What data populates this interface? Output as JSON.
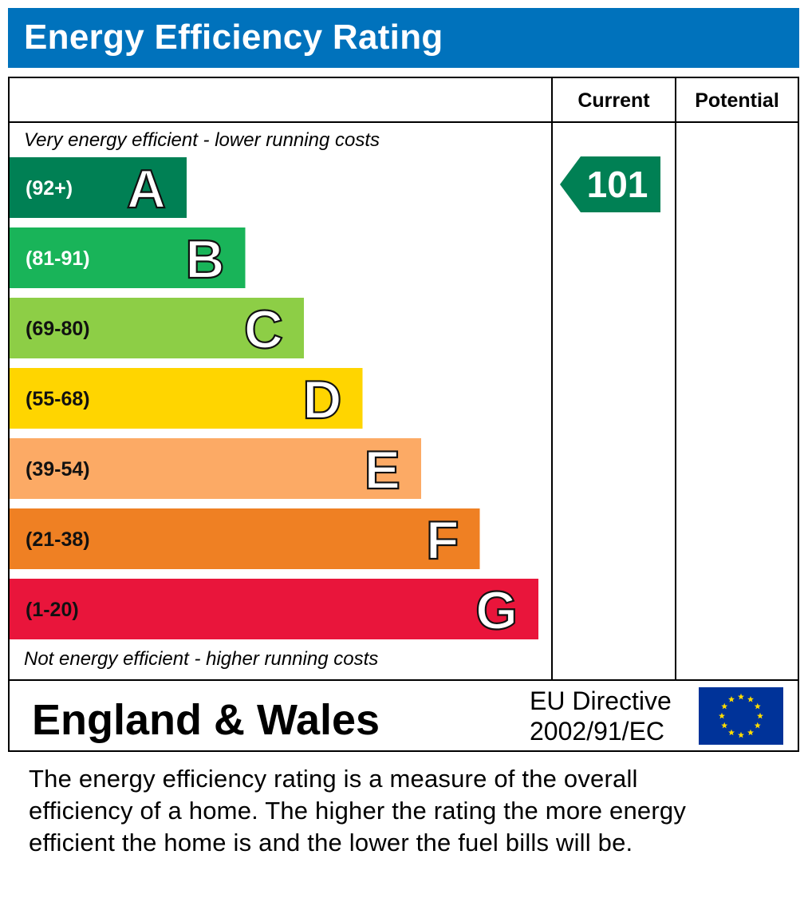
{
  "header": {
    "title": "Energy Efficiency Rating"
  },
  "columns": {
    "current": "Current",
    "potential": "Potential"
  },
  "captions": {
    "top": "Very energy efficient - lower running costs",
    "bottom": "Not energy efficient - higher running costs"
  },
  "chart_data": {
    "type": "bar",
    "categories": [
      "A",
      "B",
      "C",
      "D",
      "E",
      "F",
      "G"
    ],
    "ranges": [
      "(92+)",
      "(81-91)",
      "(69-80)",
      "(55-68)",
      "(39-54)",
      "(21-38)",
      "(1-20)"
    ],
    "colors": [
      "#008054",
      "#19b459",
      "#8dce46",
      "#ffd500",
      "#fcaa65",
      "#ef8023",
      "#e9153b"
    ],
    "current": {
      "value": 101,
      "band": "A",
      "color": "#008054"
    },
    "potential": null
  },
  "footer": {
    "country": "England & Wales",
    "directive_line1": "EU Directive",
    "directive_line2": "2002/91/EC",
    "flag_icon": "eu-flag-icon",
    "flag_color": "#003399",
    "star_color": "#ffdd00"
  },
  "description": {
    "line1": "The energy efficiency rating is a measure of the overall",
    "line2": "efficiency of a home.  The higher the rating the more energy",
    "line3": "efficient the home is and the lower the fuel bills will be."
  }
}
